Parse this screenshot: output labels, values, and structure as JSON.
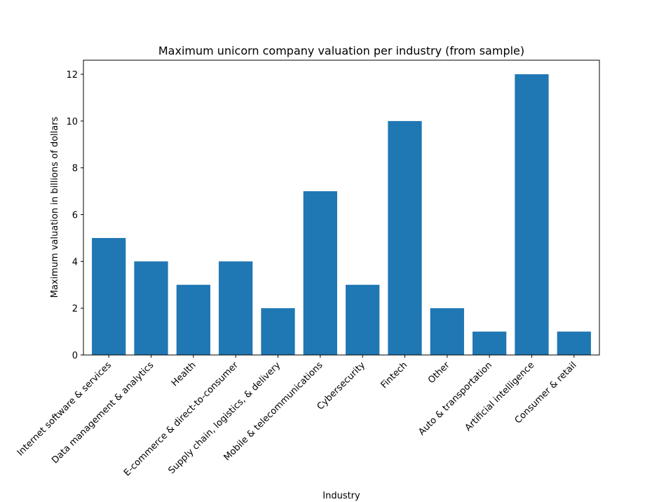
{
  "chart_data": {
    "type": "bar",
    "title": "Maximum unicorn company valuation per industry (from sample)",
    "xlabel": "Industry",
    "ylabel": "Maximum valuation in billions of dollars",
    "categories": [
      "Internet software & services",
      "Data management & analytics",
      "Health",
      "E-commerce & direct-to-consumer",
      "Supply chain, logistics, & delivery",
      "Mobile & telecommunications",
      "Cybersecurity",
      "Fintech",
      "Other",
      "Auto & transportation",
      "Artificial intelligence",
      "Consumer & retail"
    ],
    "values": [
      5,
      4,
      3,
      4,
      2,
      7,
      3,
      10,
      2,
      1,
      12,
      1
    ],
    "ylim": [
      0,
      12.6
    ],
    "yticks": [
      0,
      2,
      4,
      6,
      8,
      10,
      12
    ],
    "grid": false,
    "bar_color": "#1f77b4"
  }
}
